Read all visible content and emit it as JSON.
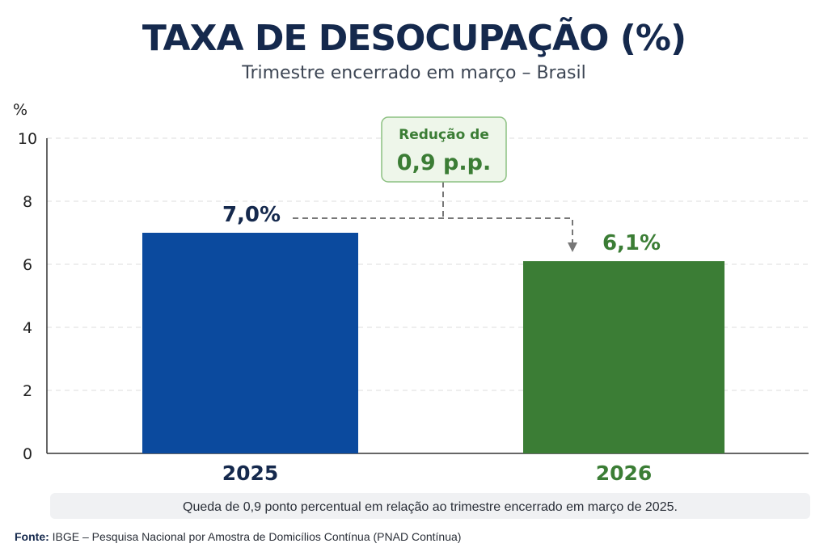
{
  "chart_data": {
    "type": "bar",
    "title": "TAXA DE DESOCUPAÇÃO (%)",
    "subtitle": "Trimestre encerrado em março – Brasil",
    "ylabel": "%",
    "ylim": [
      0,
      10
    ],
    "yticks": [
      0,
      2,
      4,
      6,
      8,
      10
    ],
    "grid": true,
    "categories": [
      "2025",
      "2026"
    ],
    "values": [
      7.0,
      6.1
    ],
    "data_labels": [
      "7,0%",
      "6,1%"
    ],
    "colors": [
      "#0b4a9e",
      "#3b7d35"
    ],
    "annotation": {
      "line1": "Redução de",
      "line2": "0,9 p.p."
    },
    "note": "Queda de 0,9 ponto percentual em relação ao trimestre encerrado em março de 2025.",
    "source_label": "Fonte:",
    "source_text": "IBGE – Pesquisa Nacional por Amostra de Domicílios Contínua (PNAD Contínua)"
  }
}
